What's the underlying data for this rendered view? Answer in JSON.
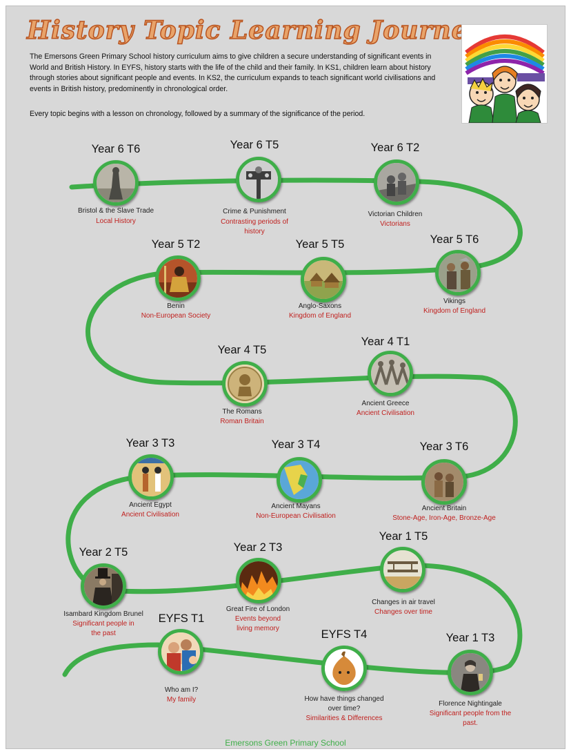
{
  "title": "History Topic Learning Journey",
  "intro": {
    "paragraph1": "The Emersons Green Primary School history curriculum aims to give children a secure understanding of significant events in World and British History. In EYFS, history starts with the life of the child and their family. In KS1, children learn about history through stories about significant people and events. In KS2, the curriculum expands to teach significant world civilisations and events in British history, predominently in chronological order.",
    "paragraph2": "Every topic begins with a lesson on chronology, followed by a summary of the significance of the period."
  },
  "colors": {
    "path": "#3fae49",
    "subtitle": "#c0211f",
    "title_fill": "#e8a36a",
    "title_outline": "#b8531f"
  },
  "topics": [
    {
      "year": "Year 6 T6",
      "name": "Bristol & the Slave Trade",
      "subtitle": "Local History",
      "icon": "statue-photo"
    },
    {
      "year": "Year 6 T5",
      "name": "Crime & Punishment",
      "subtitle": "Contrasting periods of history",
      "icon": "pillory-photo"
    },
    {
      "year": "Year 6 T2",
      "name": "Victorian Children",
      "subtitle": "Victorians",
      "icon": "victorian-children-photo"
    },
    {
      "year": "Year 5 T2",
      "name": "Benin",
      "subtitle": "Non-European Society",
      "icon": "benin-warrior-photo"
    },
    {
      "year": "Year 5 T5",
      "name": "Anglo-Saxons",
      "subtitle": "Kingdom of England",
      "icon": "anglo-saxon-village-photo"
    },
    {
      "year": "Year 5 T6",
      "name": "Vikings",
      "subtitle": "Kingdom of England",
      "icon": "viking-photo"
    },
    {
      "year": "Year 4 T5",
      "name": "The Romans",
      "subtitle": "Roman Britain",
      "icon": "roman-coin-photo"
    },
    {
      "year": "Year 4 T1",
      "name": "Ancient Greece",
      "subtitle": "Ancient Civilisation",
      "icon": "greek-frieze-photo"
    },
    {
      "year": "Year 3 T3",
      "name": "Ancient Egypt",
      "subtitle": "Ancient Civilisation",
      "icon": "egyptian-painting-photo"
    },
    {
      "year": "Year 3 T4",
      "name": "Ancient Mayans",
      "subtitle": "Non-European Civilisation",
      "icon": "mayan-map-photo"
    },
    {
      "year": "Year 3 T6",
      "name": "Ancient Britain",
      "subtitle": "Stone-Age, Iron-Age, Bronze-Age",
      "icon": "stone-age-people-photo"
    },
    {
      "year": "Year 2 T5",
      "name": "Isambard Kingdom Brunel",
      "subtitle": "Significant people in the past",
      "icon": "brunel-portrait-photo"
    },
    {
      "year": "Year 2 T3",
      "name": "Great Fire of London",
      "subtitle": "Events beyond living memory",
      "icon": "great-fire-photo"
    },
    {
      "year": "Year 1 T5",
      "name": "Changes in air travel",
      "subtitle": "Changes over time",
      "icon": "biplane-photo"
    },
    {
      "year": "EYFS T1",
      "name": "Who am I?",
      "subtitle": "My family",
      "icon": "family-photo"
    },
    {
      "year": "EYFS T4",
      "name": "How have things changed over time?",
      "subtitle": "Similarities & Differences",
      "icon": "onion-character-photo"
    },
    {
      "year": "Year 1 T3",
      "name": "Florence Nightingale",
      "subtitle": "Significant people from the past.",
      "icon": "nightingale-portrait-photo"
    }
  ],
  "footer": "Emersons Green Primary School"
}
